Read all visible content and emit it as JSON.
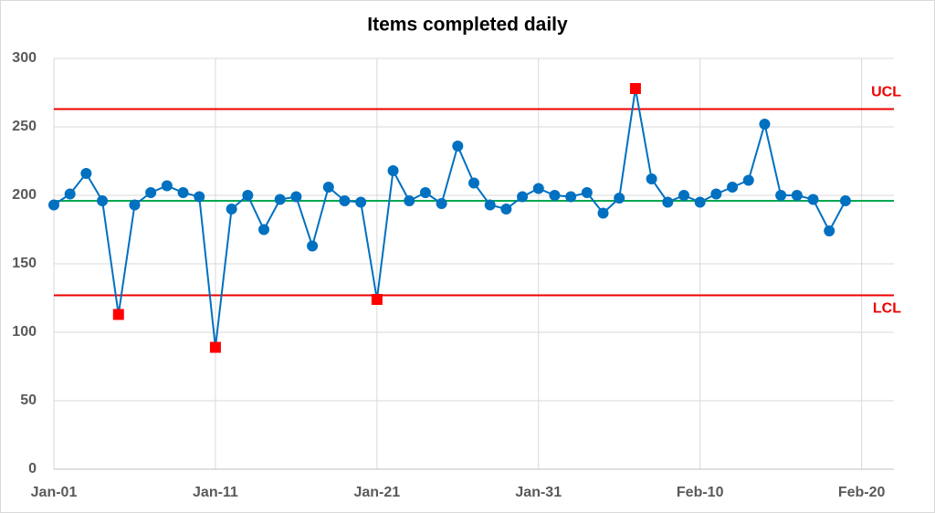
{
  "chart_data": {
    "type": "line",
    "title": "Items completed daily",
    "x": [
      "Jan-01",
      "Jan-02",
      "Jan-03",
      "Jan-04",
      "Jan-05",
      "Jan-06",
      "Jan-07",
      "Jan-08",
      "Jan-09",
      "Jan-10",
      "Jan-11",
      "Jan-12",
      "Jan-13",
      "Jan-14",
      "Jan-15",
      "Jan-16",
      "Jan-17",
      "Jan-18",
      "Jan-19",
      "Jan-20",
      "Jan-21",
      "Jan-22",
      "Jan-23",
      "Jan-24",
      "Jan-25",
      "Jan-26",
      "Jan-27",
      "Jan-28",
      "Jan-29",
      "Jan-30",
      "Jan-31",
      "Feb-01",
      "Feb-02",
      "Feb-03",
      "Feb-04",
      "Feb-05",
      "Feb-06",
      "Feb-07",
      "Feb-08",
      "Feb-09",
      "Feb-10",
      "Feb-11",
      "Feb-12",
      "Feb-13",
      "Feb-14",
      "Feb-15",
      "Feb-16",
      "Feb-17",
      "Feb-18",
      "Feb-19"
    ],
    "series": [
      {
        "color": "#0070c0",
        "outlier_color": "#ff0000",
        "values": [
          193,
          201,
          216,
          196,
          113,
          193,
          202,
          207,
          202,
          199,
          89,
          190,
          200,
          175,
          197,
          199,
          163,
          206,
          196,
          195,
          124,
          218,
          196,
          202,
          194,
          236,
          209,
          193,
          190,
          199,
          205,
          200,
          199,
          202,
          187,
          198,
          278,
          212,
          195,
          200,
          195,
          201,
          206,
          211,
          252,
          200,
          200,
          197,
          174,
          196
        ]
      }
    ],
    "reference_lines": [
      {
        "name": "UCL",
        "value": 263,
        "color": "#ee0000"
      },
      {
        "name": "LCL",
        "value": 127,
        "color": "#ee0000"
      },
      {
        "value": 196,
        "color": "#00a651"
      }
    ],
    "xlim": [
      "Jan-01",
      "Feb-22"
    ],
    "xticks": [
      "Jan-01",
      "Jan-11",
      "Jan-21",
      "Jan-31",
      "Feb-10",
      "Feb-20"
    ],
    "ylim": [
      0,
      300
    ],
    "yticks": [
      0,
      50,
      100,
      150,
      200,
      250,
      300
    ],
    "grid": true
  }
}
